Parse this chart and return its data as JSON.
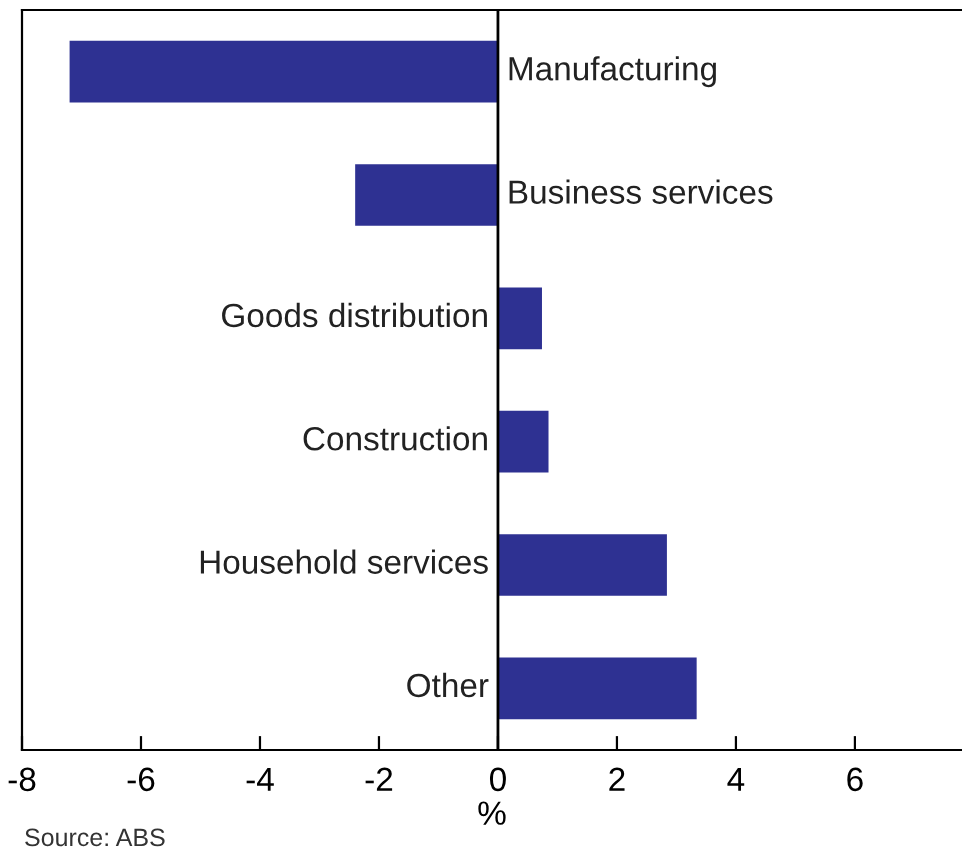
{
  "chart_data": {
    "type": "bar",
    "orientation": "horizontal",
    "categories": [
      "Manufacturing",
      "Business services",
      "Goods distribution",
      "Construction",
      "Household services",
      "Other"
    ],
    "values": [
      -7.2,
      -2.4,
      0.74,
      0.85,
      2.84,
      3.34
    ],
    "color": "#2e3192",
    "xlim": [
      -8,
      7.8
    ],
    "xticks": [
      -8,
      -6,
      -4,
      -2,
      0,
      2,
      4,
      6
    ],
    "xlabel": "%",
    "grid": false,
    "annotations": [
      "Source: ABS"
    ]
  }
}
